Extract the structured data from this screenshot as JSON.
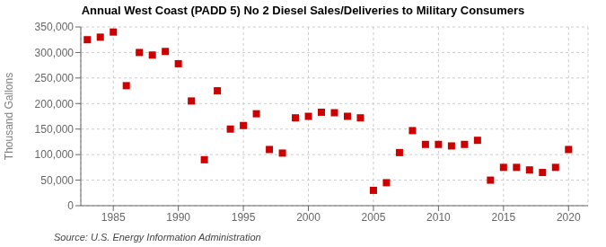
{
  "chart_data": {
    "type": "scatter",
    "title": "Annual West Coast (PADD 5) No 2 Diesel Sales/Deliveries to Military Consumers",
    "ylabel": "Thousand Gallons",
    "annotations": [
      "Source: U.S. Energy Information Administration"
    ],
    "x": [
      1983,
      1984,
      1985,
      1986,
      1987,
      1988,
      1989,
      1990,
      1991,
      1992,
      1993,
      1994,
      1995,
      1996,
      1997,
      1998,
      1999,
      2000,
      2001,
      2002,
      2003,
      2004,
      2005,
      2006,
      2007,
      2008,
      2009,
      2010,
      2011,
      2012,
      2013,
      2014,
      2015,
      2016,
      2017,
      2018,
      2019,
      2020
    ],
    "values": [
      325000,
      330000,
      340000,
      235000,
      300000,
      295000,
      302000,
      278000,
      205000,
      90000,
      225000,
      150000,
      157000,
      180000,
      110000,
      103000,
      172000,
      175000,
      183000,
      182000,
      175000,
      172000,
      30000,
      45000,
      104000,
      147000,
      120000,
      120000,
      117000,
      120000,
      128000,
      50000,
      75000,
      75000,
      70000,
      65000,
      75000,
      110000
    ],
    "color": "#cc0000",
    "marker": "square",
    "xlim": [
      1982.5,
      2021.5
    ],
    "xticks": [
      1985,
      1990,
      1995,
      2000,
      2005,
      2010,
      2015,
      2020
    ],
    "ylim": [
      0,
      350000
    ],
    "yticks": [
      0,
      {
        "value": 50000,
        "label": "50,000"
      },
      {
        "value": 100000,
        "label": "100,000"
      },
      {
        "value": 150000,
        "label": "150,000"
      },
      {
        "value": 200000,
        "label": "200,000"
      },
      {
        "value": 250000,
        "label": "250,000"
      },
      {
        "value": 300000,
        "label": "300,000"
      },
      {
        "value": 350000,
        "label": "350,000"
      }
    ],
    "grid": true
  }
}
